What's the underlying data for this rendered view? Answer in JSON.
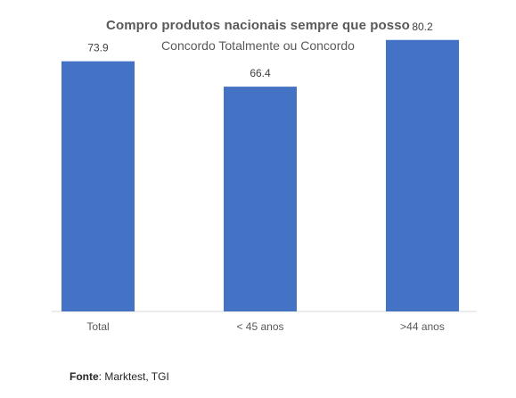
{
  "chart_data": {
    "type": "bar",
    "title": "Compro produtos nacionais sempre que posso",
    "subtitle": "Concordo Totalmente ou Concordo",
    "categories": [
      "Total",
      "< 45 anos",
      ">44 anos"
    ],
    "values": [
      73.9,
      66.4,
      80.2
    ],
    "value_labels": [
      "73.9",
      "66.4",
      "80.2"
    ],
    "ylim": [
      0,
      92
    ],
    "grid": false,
    "bar_color": "#4472C4"
  },
  "source": {
    "label": "Fonte",
    "text": ": Marktest, TGI"
  }
}
